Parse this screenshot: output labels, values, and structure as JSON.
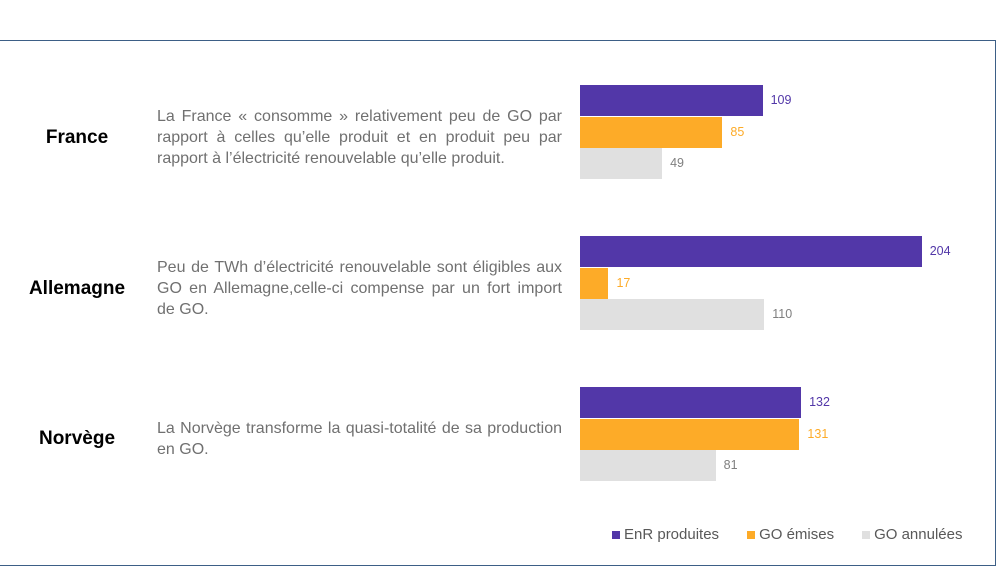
{
  "chart_data": {
    "type": "bar",
    "orientation": "horizontal",
    "unit": "TWh",
    "categories": [
      "France",
      "Allemagne",
      "Norvège"
    ],
    "series": [
      {
        "name": "EnR produites",
        "color": "#5237a8",
        "values": [
          109,
          204,
          132
        ]
      },
      {
        "name": "GO émises",
        "color": "#fdab28",
        "values": [
          85,
          17,
          131
        ]
      },
      {
        "name": "GO annulées",
        "color": "#e0e0e0",
        "label_color": "#7f7f7f",
        "values": [
          49,
          110,
          81
        ]
      }
    ],
    "legend": "bottom-right"
  },
  "descriptions": [
    "La France « consomme » relativement peu de GO par rapport à celles qu’elle produit et en produit peu par rapport à l’électricité renouvelable qu’elle produit.",
    "Peu de TWh d’électricité renouvelable sont éligibles aux GO en Allemagne,celle-ci compense par un fort import de GO.",
    "La Norvège transforme la quasi-totalité de sa production en GO."
  ]
}
